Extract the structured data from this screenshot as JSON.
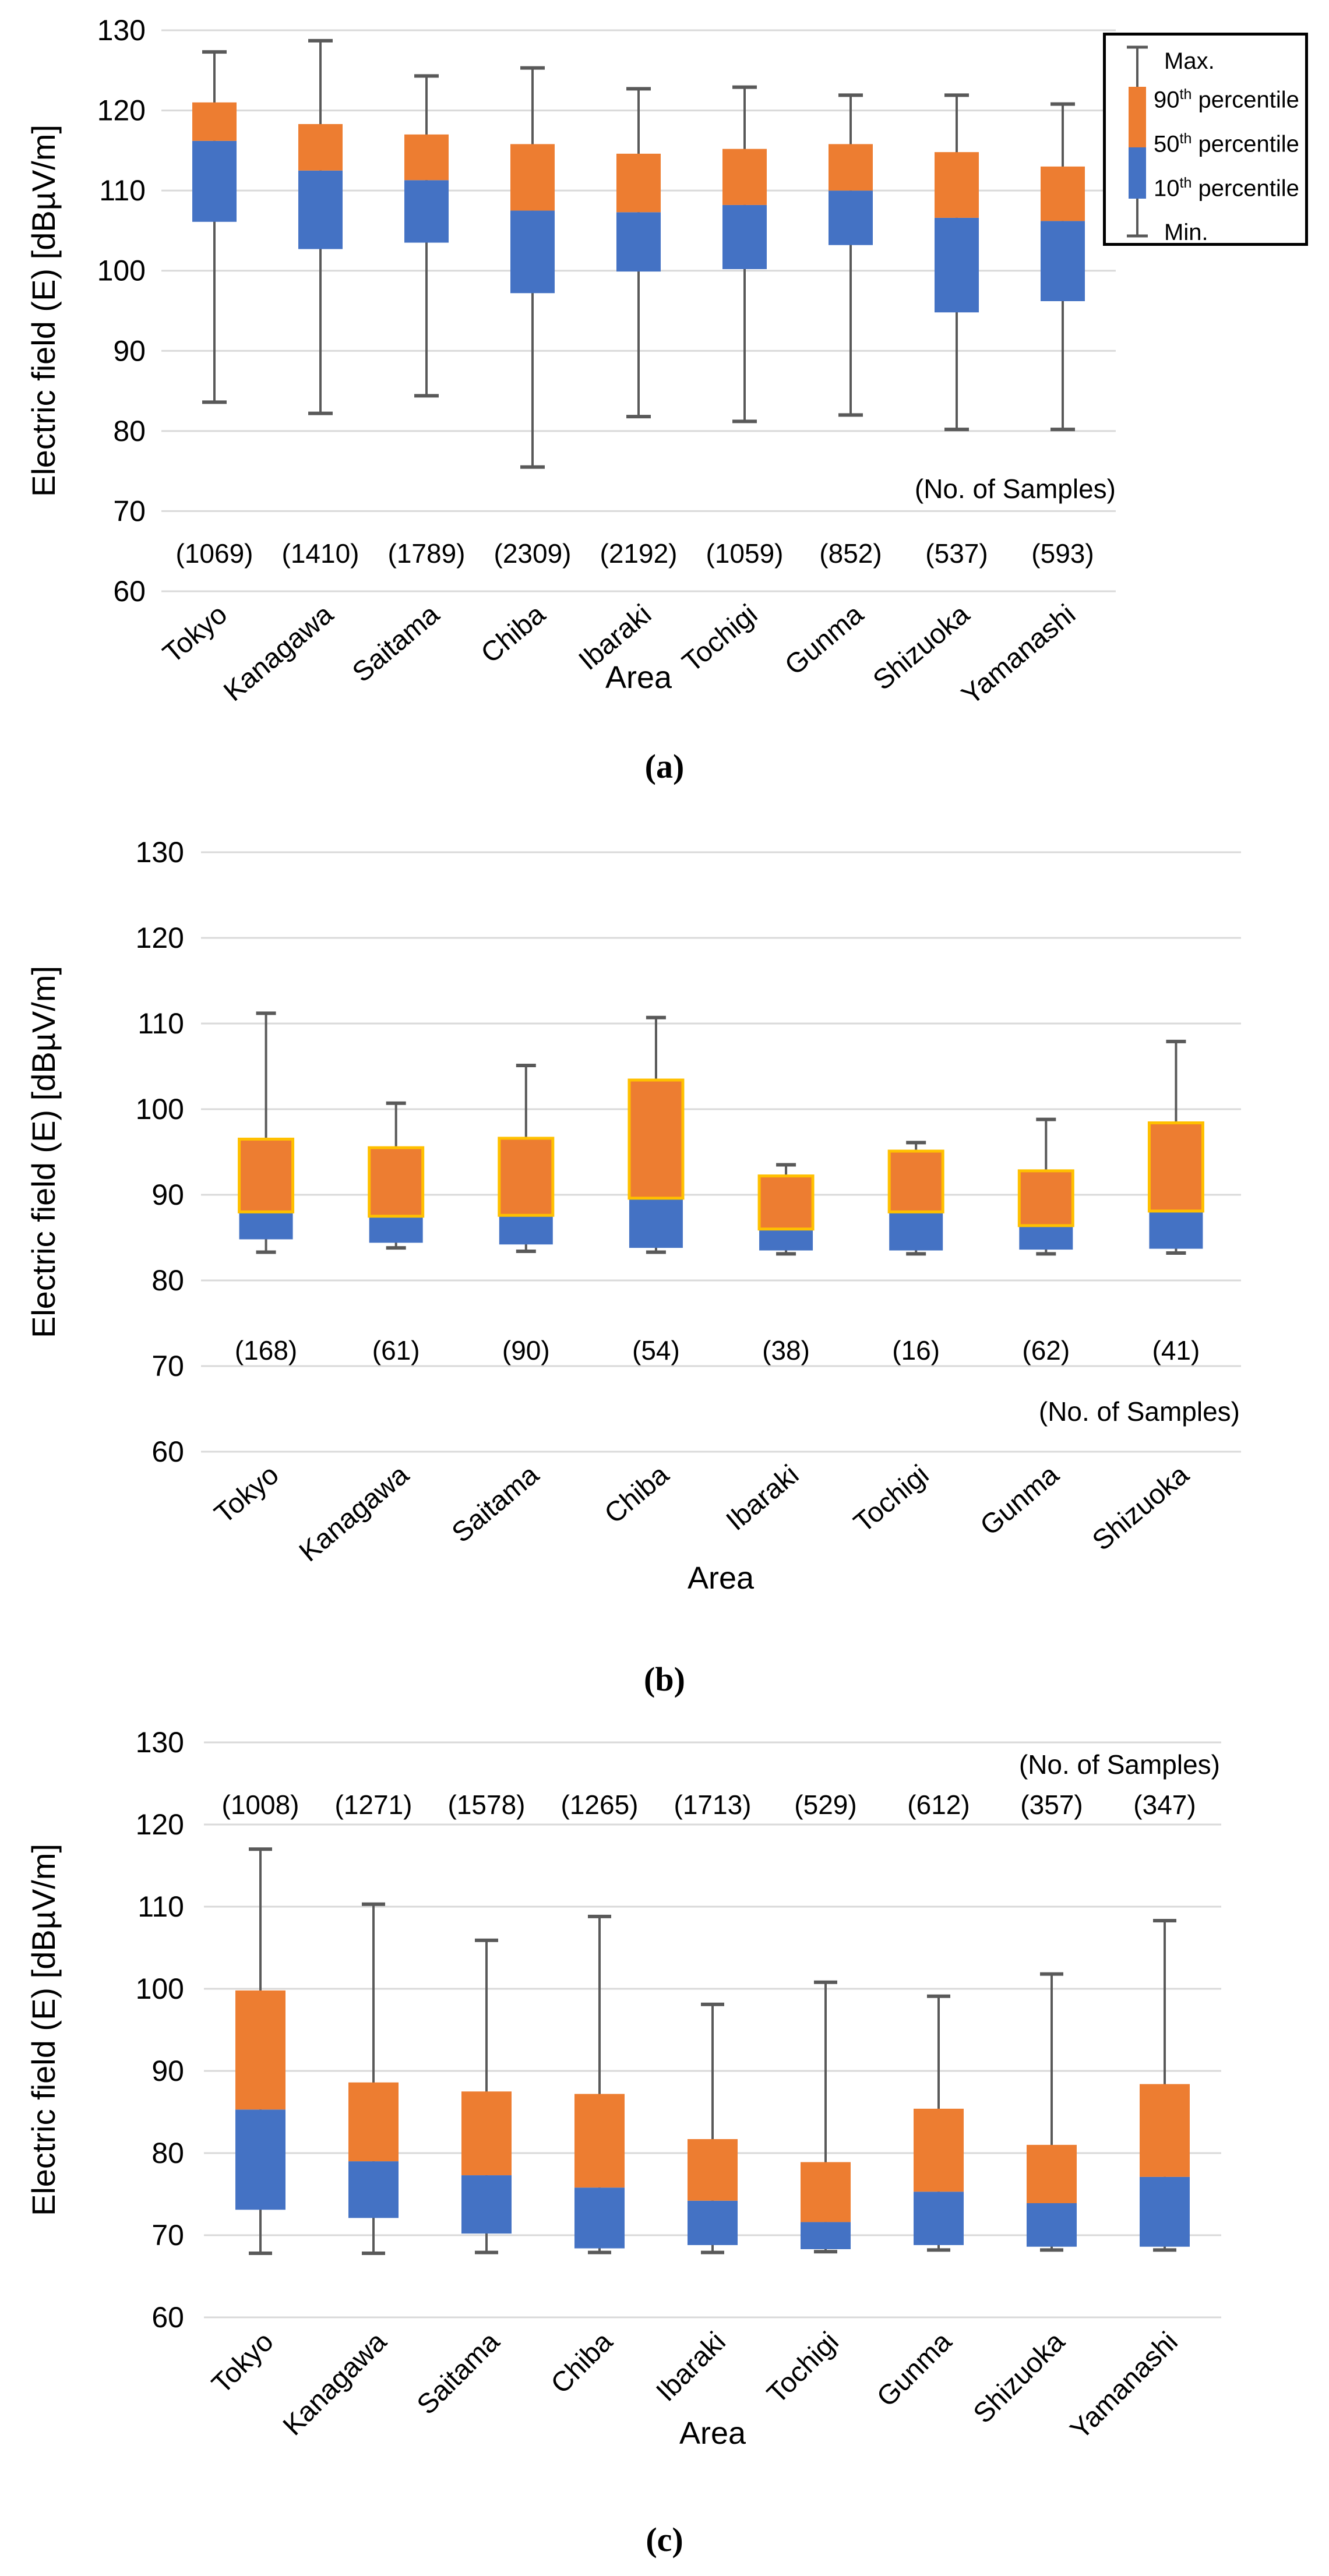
{
  "colors": {
    "percentile_90_fill": "#ED7D31",
    "percentile_10_fill": "#4472C4",
    "box_outline_chart_b": "#FFC000",
    "whisker": "#595959",
    "gridline": "#D9D9D9",
    "text": "#000000",
    "legend_border": "#000000",
    "background": "#FFFFFF"
  },
  "legend": {
    "position": "top-right",
    "items": [
      "Max.",
      "90th percentile",
      "50th percentile",
      "10th percentile",
      "Min."
    ]
  },
  "chart_data": [
    {
      "type": "boxplot",
      "caption": "(a)",
      "ylabel": "Electric field (E) [dBµV/m]",
      "xlabel": "Area",
      "samples_note": "(No. of Samples)",
      "ylim": [
        60,
        130
      ],
      "yticks": [
        130,
        120,
        110,
        100,
        90,
        80,
        70,
        60
      ],
      "grid": true,
      "box_outline": false,
      "has_legend": true,
      "areas": [
        {
          "label": "Tokyo",
          "samples": "(1069)",
          "min": 83.6,
          "p10": 106.1,
          "p50": 116.2,
          "p90": 121.0,
          "max": 127.3
        },
        {
          "label": "Kanagawa",
          "samples": "(1410)",
          "min": 82.2,
          "p10": 102.7,
          "p50": 112.5,
          "p90": 118.3,
          "max": 128.7
        },
        {
          "label": "Saitama",
          "samples": "(1789)",
          "min": 84.4,
          "p10": 103.5,
          "p50": 111.3,
          "p90": 117.0,
          "max": 124.3
        },
        {
          "label": "Chiba",
          "samples": "(2309)",
          "min": 75.5,
          "p10": 97.2,
          "p50": 107.5,
          "p90": 115.8,
          "max": 125.3
        },
        {
          "label": "Ibaraki",
          "samples": "(2192)",
          "min": 81.8,
          "p10": 99.9,
          "p50": 107.3,
          "p90": 114.6,
          "max": 122.7
        },
        {
          "label": "Tochigi",
          "samples": "(1059)",
          "min": 81.2,
          "p10": 100.2,
          "p50": 108.2,
          "p90": 115.2,
          "max": 122.9
        },
        {
          "label": "Gunma",
          "samples": "(852)",
          "min": 82.0,
          "p10": 103.2,
          "p50": 110.0,
          "p90": 115.8,
          "max": 121.9
        },
        {
          "label": "Shizuoka",
          "samples": "(537)",
          "min": 80.2,
          "p10": 94.8,
          "p50": 106.6,
          "p90": 114.8,
          "max": 121.9
        },
        {
          "label": "Yamanashi",
          "samples": "(593)",
          "min": 80.2,
          "p10": 96.2,
          "p50": 106.2,
          "p90": 113.0,
          "max": 120.8
        }
      ]
    },
    {
      "type": "boxplot",
      "caption": "(b)",
      "ylabel": "Electric field (E) [dBµV/m]",
      "xlabel": "Area",
      "samples_note": "(No. of Samples)",
      "ylim": [
        60,
        130
      ],
      "yticks": [
        130,
        120,
        110,
        100,
        90,
        80,
        70,
        60
      ],
      "grid": true,
      "box_outline": true,
      "has_legend": false,
      "areas": [
        {
          "label": "Tokyo",
          "samples": "(168)",
          "min": 83.3,
          "p10": 84.8,
          "p50": 88.0,
          "p90": 96.5,
          "max": 111.2
        },
        {
          "label": "Kanagawa",
          "samples": "(61)",
          "min": 83.8,
          "p10": 84.4,
          "p50": 87.5,
          "p90": 95.5,
          "max": 100.7
        },
        {
          "label": "Saitama",
          "samples": "(90)",
          "min": 83.4,
          "p10": 84.2,
          "p50": 87.6,
          "p90": 96.6,
          "max": 105.1
        },
        {
          "label": "Chiba",
          "samples": "(54)",
          "min": 83.3,
          "p10": 83.8,
          "p50": 89.6,
          "p90": 103.4,
          "max": 110.7
        },
        {
          "label": "Ibaraki",
          "samples": "(38)",
          "min": 83.1,
          "p10": 83.5,
          "p50": 86.0,
          "p90": 92.2,
          "max": 93.5
        },
        {
          "label": "Tochigi",
          "samples": "(16)",
          "min": 83.1,
          "p10": 83.5,
          "p50": 88.0,
          "p90": 95.1,
          "max": 96.1
        },
        {
          "label": "Gunma",
          "samples": "(62)",
          "min": 83.1,
          "p10": 83.6,
          "p50": 86.4,
          "p90": 92.8,
          "max": 98.8
        },
        {
          "label": "Shizuoka",
          "samples": "(41)",
          "min": 83.2,
          "p10": 83.7,
          "p50": 88.1,
          "p90": 98.4,
          "max": 107.9
        }
      ]
    },
    {
      "type": "boxplot",
      "caption": "(c)",
      "ylabel": "Electric field (E) [dBµV/m]",
      "xlabel": "Area",
      "samples_note": "(No. of Samples)",
      "ylim": [
        60,
        130
      ],
      "yticks": [
        130,
        120,
        110,
        100,
        90,
        80,
        70,
        60
      ],
      "grid": true,
      "box_outline": false,
      "has_legend": false,
      "areas": [
        {
          "label": "Tokyo",
          "samples": "(1008)",
          "min": 67.8,
          "p10": 73.1,
          "p50": 85.3,
          "p90": 99.8,
          "max": 117.0
        },
        {
          "label": "Kanagawa",
          "samples": "(1271)",
          "min": 67.8,
          "p10": 72.1,
          "p50": 79.0,
          "p90": 88.6,
          "max": 110.3
        },
        {
          "label": "Saitama",
          "samples": "(1578)",
          "min": 67.9,
          "p10": 70.2,
          "p50": 77.3,
          "p90": 87.5,
          "max": 105.9
        },
        {
          "label": "Chiba",
          "samples": "(1265)",
          "min": 67.9,
          "p10": 68.4,
          "p50": 75.8,
          "p90": 87.2,
          "max": 108.8
        },
        {
          "label": "Ibaraki",
          "samples": "(1713)",
          "min": 67.9,
          "p10": 68.8,
          "p50": 74.2,
          "p90": 81.7,
          "max": 98.1
        },
        {
          "label": "Tochigi",
          "samples": "(529)",
          "min": 68.0,
          "p10": 68.3,
          "p50": 71.6,
          "p90": 78.9,
          "max": 100.8
        },
        {
          "label": "Gunma",
          "samples": "(612)",
          "min": 68.2,
          "p10": 68.8,
          "p50": 75.3,
          "p90": 85.4,
          "max": 99.1
        },
        {
          "label": "Shizuoka",
          "samples": "(357)",
          "min": 68.2,
          "p10": 68.6,
          "p50": 73.9,
          "p90": 81.0,
          "max": 101.8
        },
        {
          "label": "Yamanashi",
          "samples": "(347)",
          "min": 68.2,
          "p10": 68.6,
          "p50": 77.1,
          "p90": 88.4,
          "max": 108.3
        }
      ]
    }
  ]
}
